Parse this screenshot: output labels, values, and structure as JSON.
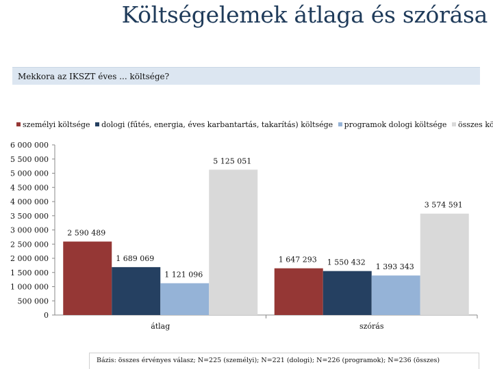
{
  "header": {
    "title": "Költségelemek átlaga és szórása"
  },
  "question": "Mekkora az IKSZT éves ... költsége?",
  "footnote": "Bázis: összes érvényes válasz; N=225 (személyi); N=221 (dologi); N=226 (programok); N=236 (összes)",
  "chart_data": {
    "type": "bar",
    "categories": [
      "átlag",
      "szórás"
    ],
    "series": [
      {
        "name": "személyi költsége",
        "values": [
          2590489,
          1647293
        ],
        "labels": [
          "2 590 489",
          "1 647 293"
        ],
        "color": "#953735"
      },
      {
        "name": "dologi (fűtés, energia, éves karbantartás, takarítás) költsége",
        "values": [
          1689069,
          1550432
        ],
        "labels": [
          "1 689 069",
          "1 550 432"
        ],
        "color": "#254061"
      },
      {
        "name": "programok dologi költsége",
        "values": [
          1121096,
          1393343
        ],
        "labels": [
          "1 121 096",
          "1 393 343"
        ],
        "color": "#95b3d7"
      },
      {
        "name": "összes költség",
        "values": [
          5125051,
          3574591
        ],
        "labels": [
          "5 125 051",
          "3 574 591"
        ],
        "color": "#d9d9d9"
      }
    ],
    "yticks": [
      "0",
      "500 000",
      "1 000 000",
      "1 500 000",
      "2 000 000",
      "2 500 000",
      "3 000 000",
      "3 500 000",
      "4 000 000",
      "4 500 000",
      "5 000 000",
      "5 500 000",
      "6 000 000"
    ],
    "ylim": [
      0,
      6000000
    ],
    "grid": false,
    "legend_position": "top"
  }
}
